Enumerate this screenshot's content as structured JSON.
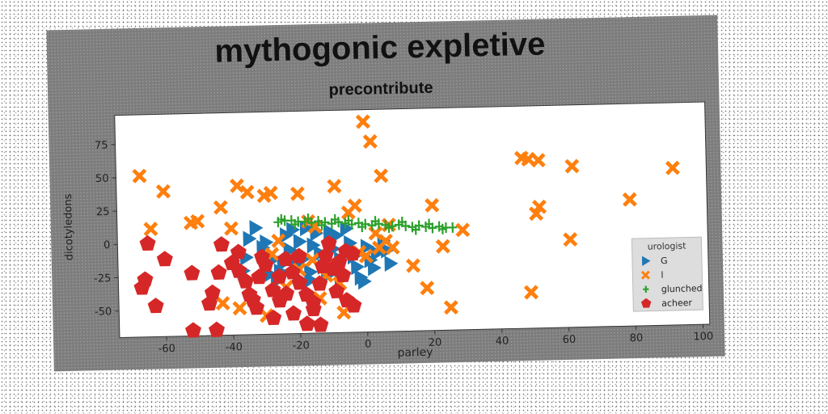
{
  "chart_data": {
    "type": "scatter",
    "title": "mythogonic expletive",
    "subtitle": "precontribute",
    "xlabel": "parley",
    "ylabel": "dicotyledons",
    "xlim": [
      -74,
      102
    ],
    "ylim": [
      -70,
      97
    ],
    "xticks": [
      -60,
      -40,
      -20,
      0,
      20,
      40,
      60,
      80,
      100
    ],
    "yticks": [
      -50,
      -25,
      0,
      25,
      50,
      75
    ],
    "grid": false,
    "legend": {
      "title": "urologist",
      "placement": "lower-right"
    },
    "series": [
      {
        "name": "G",
        "marker": "triangle-right",
        "color": "#1f77b4",
        "points": [
          [
            -28,
            -14
          ],
          [
            -26,
            -23
          ],
          [
            -23,
            -7
          ],
          [
            -21,
            -19
          ],
          [
            -20,
            -1
          ],
          [
            -19,
            -14
          ],
          [
            -17,
            -24
          ],
          [
            -16,
            -4
          ],
          [
            -14,
            -10
          ],
          [
            -13,
            -20
          ],
          [
            -12,
            -27
          ],
          [
            -10,
            -7
          ],
          [
            -8,
            -15
          ],
          [
            -7,
            -26
          ],
          [
            -5,
            -3
          ],
          [
            -4,
            -13
          ],
          [
            -3,
            -21
          ],
          [
            -2,
            -29
          ],
          [
            0,
            -6
          ],
          [
            1,
            -16
          ],
          [
            2,
            -22
          ],
          [
            3,
            -11
          ],
          [
            5,
            -2
          ],
          [
            6,
            -9
          ],
          [
            7,
            -19
          ],
          [
            -24,
            4
          ],
          [
            -22,
            8
          ],
          [
            -18,
            9
          ],
          [
            -15,
            5
          ],
          [
            -11,
            6
          ],
          [
            -9,
            3
          ],
          [
            -6,
            8
          ],
          [
            -33,
            10
          ],
          [
            -31,
            -5
          ],
          [
            -29,
            -25
          ],
          [
            -27,
            -30
          ],
          [
            -25,
            -17
          ],
          [
            -17,
            -30
          ],
          [
            -8,
            -28
          ],
          [
            -1,
            -32
          ],
          [
            -35,
            2
          ],
          [
            -30,
            -1
          ],
          [
            -36,
            -12
          ],
          [
            -37,
            -22
          ]
        ]
      },
      {
        "name": "l",
        "marker": "x-filled",
        "color": "#ff7f0e",
        "points": [
          [
            -67,
            51
          ],
          [
            -64,
            11
          ],
          [
            -60,
            39
          ],
          [
            -52,
            15
          ],
          [
            -50,
            16
          ],
          [
            -43,
            26
          ],
          [
            -40,
            10
          ],
          [
            -38,
            42
          ],
          [
            -35,
            37
          ],
          [
            -30,
            34
          ],
          [
            -28,
            36
          ],
          [
            -20,
            35
          ],
          [
            -17,
            14
          ],
          [
            -15,
            10
          ],
          [
            -9,
            40
          ],
          [
            -5,
            20
          ],
          [
            -3,
            25
          ],
          [
            0,
            88
          ],
          [
            2,
            73
          ],
          [
            5,
            47
          ],
          [
            -26,
            0
          ],
          [
            -28,
            -10
          ],
          [
            -20,
            -22
          ],
          [
            -16,
            -15
          ],
          [
            -12,
            -27
          ],
          [
            -8,
            -33
          ],
          [
            -2,
            -10
          ],
          [
            0,
            -13
          ],
          [
            4,
            -7
          ],
          [
            6,
            -2
          ],
          [
            8,
            -7
          ],
          [
            3,
            4
          ],
          [
            7,
            10
          ],
          [
            14,
            -21
          ],
          [
            18,
            -38
          ],
          [
            20,
            24
          ],
          [
            23,
            -7
          ],
          [
            25,
            -53
          ],
          [
            29,
            5
          ],
          [
            -43,
            -46
          ],
          [
            -38,
            -50
          ],
          [
            -30,
            -56
          ],
          [
            -24,
            -35
          ],
          [
            -14,
            -44
          ],
          [
            -7,
            -55
          ],
          [
            47,
            58
          ],
          [
            49,
            57
          ],
          [
            52,
            56
          ],
          [
            61,
            -4
          ],
          [
            62,
            51
          ],
          [
            49,
            -43
          ],
          [
            51,
            16
          ],
          [
            52,
            21
          ],
          [
            79,
            25
          ],
          [
            92,
            48
          ]
        ]
      },
      {
        "name": "glunched",
        "marker": "plus",
        "color": "#2ca02c",
        "points": [
          [
            -26,
            14
          ],
          [
            -24,
            15
          ],
          [
            -22,
            15
          ],
          [
            -20,
            14
          ],
          [
            -18,
            14
          ],
          [
            -16,
            13
          ],
          [
            -14,
            14
          ],
          [
            -12,
            13
          ],
          [
            -10,
            12
          ],
          [
            -8,
            13
          ],
          [
            -6,
            12
          ],
          [
            -4,
            11
          ],
          [
            -2,
            12
          ],
          [
            0,
            11
          ],
          [
            2,
            10
          ],
          [
            4,
            11
          ],
          [
            6,
            10
          ],
          [
            8,
            9
          ],
          [
            10,
            10
          ],
          [
            12,
            9
          ],
          [
            14,
            8
          ],
          [
            16,
            9
          ],
          [
            18,
            8
          ],
          [
            20,
            7
          ],
          [
            22,
            8
          ],
          [
            24,
            7
          ],
          [
            26,
            7
          ],
          [
            -25,
            16
          ],
          [
            -21,
            12
          ],
          [
            -17,
            16
          ],
          [
            -13,
            11
          ],
          [
            -9,
            15
          ],
          [
            -5,
            14
          ],
          [
            -1,
            9
          ],
          [
            3,
            13
          ],
          [
            7,
            8
          ],
          [
            11,
            12
          ],
          [
            15,
            6
          ],
          [
            19,
            10
          ],
          [
            23,
            6
          ]
        ]
      },
      {
        "name": "acheer",
        "marker": "pentagon",
        "color": "#d62728",
        "points": [
          [
            -65,
            0
          ],
          [
            -60,
            -12
          ],
          [
            -66,
            -27
          ],
          [
            -67,
            -33
          ],
          [
            -63,
            -47
          ],
          [
            -52,
            -23
          ],
          [
            -52,
            -66
          ],
          [
            -45,
            -66
          ],
          [
            -46,
            -38
          ],
          [
            -44,
            -23
          ],
          [
            -43,
            -2
          ],
          [
            -40,
            -16
          ],
          [
            -38,
            -22
          ],
          [
            -36,
            -30
          ],
          [
            -35,
            -40
          ],
          [
            -33,
            -50
          ],
          [
            -32,
            -27
          ],
          [
            -30,
            -18
          ],
          [
            -28,
            -37
          ],
          [
            -26,
            -27
          ],
          [
            -24,
            -14
          ],
          [
            -22,
            -24
          ],
          [
            -20,
            -32
          ],
          [
            -18,
            -41
          ],
          [
            -16,
            -47
          ],
          [
            -14,
            -33
          ],
          [
            -13,
            -20
          ],
          [
            -12,
            -12
          ],
          [
            -10,
            -22
          ],
          [
            -9,
            -39
          ],
          [
            -8,
            -17
          ],
          [
            -7,
            -27
          ],
          [
            -6,
            -9
          ],
          [
            -4,
            -11
          ],
          [
            -24,
            -40
          ],
          [
            -18,
            -63
          ],
          [
            -16,
            -52
          ],
          [
            -14,
            -64
          ],
          [
            -28,
            -58
          ],
          [
            -26,
            -45
          ],
          [
            -34,
            -44
          ],
          [
            -22,
            -55
          ],
          [
            -11,
            -3
          ],
          [
            -6,
            -46
          ],
          [
            -4,
            -50
          ],
          [
            -47,
            -46
          ],
          [
            -38,
            -8
          ],
          [
            -31,
            -12
          ],
          [
            -20,
            -12
          ]
        ]
      }
    ]
  }
}
